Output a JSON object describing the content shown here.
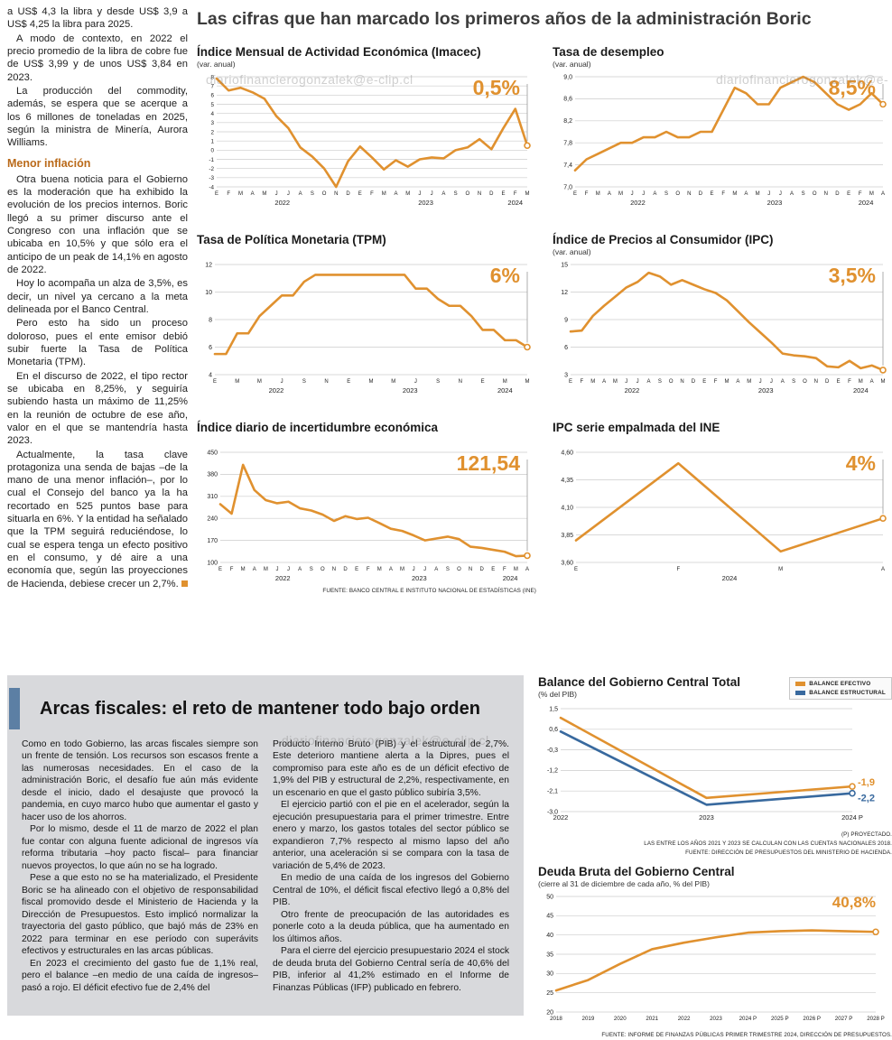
{
  "page": {
    "title": "Las cifras que han marcado los primeros años de la administración Boric",
    "watermark": "diariofinancierogonzalek@e-clip.cl"
  },
  "left_article": {
    "intro_paragraphs": [
      "a US$ 4,3 la libra y desde US$ 3,9 a US$ 4,25 la libra para 2025.",
      "A modo de contexto, en 2022 el precio promedio de la libra de cobre fue de US$ 3,99 y de unos US$ 3,84 en 2023.",
      "La producción del commodity, además, se espera que se acerque a los 6 millones de toneladas en 2025, según la ministra de Minería, Aurora Williams."
    ],
    "heading": "Menor inflación",
    "body_paragraphs": [
      "Otra buena noticia para el Gobierno es la moderación que ha exhibido la evolución de los precios internos. Boric llegó a su primer discurso ante el Congreso con una inflación que se ubicaba en 10,5% y que sólo era el anticipo de un peak de 14,1% en agosto de 2022.",
      "Hoy lo acompaña un alza de 3,5%, es decir, un nivel ya cercano a la meta delineada por el Banco Central.",
      "Pero esto ha sido un proceso doloroso, pues el ente emisor debió subir fuerte la Tasa de Política Monetaria (TPM).",
      "En el discurso de 2022, el tipo rector se ubicaba en 8,25%, y seguiría subiendo hasta un máximo de 11,25% en la reunión de octubre de ese año, valor en el que se mantendría hasta 2023."
    ],
    "last_paragraph": "Actualmente, la tasa clave protagoniza una senda de bajas –de la mano de una menor inflación–, por lo cual el Consejo del banco ya la ha recortado en 525 puntos base para situarla en 6%. Y la entidad ha señalado que la TPM seguirá reduciéndose, lo cual se espera tenga un efecto positivo en el consumo, y dé aire a una economía que, según las proyecciones de Hacienda, debiese crecer un 2,7%."
  },
  "fiscal": {
    "title": "Arcas fiscales: el reto de mantener todo bajo orden",
    "col1_paragraphs": [
      "Como en todo Gobierno, las arcas fiscales siempre son un frente de tensión. Los recursos son escasos frente a las numerosas necesidades. En el caso de la administración Boric, el desafío fue aún más evidente desde el inicio, dado el desajuste que provocó la pandemia, en cuyo marco hubo que aumentar el gasto y hacer uso de los ahorros.",
      "Por lo mismo, desde el 11 de marzo de 2022 el plan fue contar con alguna fuente adicional de ingresos vía reforma tributaria –hoy pacto fiscal– para financiar nuevos proyectos, lo que aún no se ha logrado.",
      "Pese a que esto no se ha materializado, el Presidente Boric se ha alineado con el objetivo de responsabilidad fiscal promovido desde el Ministerio de Hacienda y la Dirección de Presupuestos. Esto implicó normalizar la trayectoria del gasto público, que bajó más de 23% en 2022 para terminar en ese período con superávits efectivos y estructurales en las arcas públicas.",
      "En 2023 el crecimiento del gasto fue de 1,1% real, pero el balance –en medio de una caída de ingresos– pasó a rojo. El déficit efectivo fue de 2,4% del"
    ],
    "col2_paragraphs": [
      "Producto Interno Bruto (PIB) y el estructural de 2,7%. Este deterioro mantiene alerta a la Dipres, pues el compromiso para este año es de un déficit efectivo de 1,9% del PIB y estructural de 2,2%, respectivamente, en un escenario en que el gasto público subiría 3,5%.",
      "El ejercicio partió con el pie en el acelerador, según la ejecución presupuestaria para el primer trimestre. Entre enero y marzo, los gastos totales del sector público se expandieron 7,7% respecto al mismo lapso del año anterior, una aceleración si se compara con la tasa de variación de 5,4% de 2023.",
      "En medio de una caída de los ingresos del Gobierno Central de 10%, el déficit fiscal efectivo llegó a 0,8% del PIB.",
      "Otro frente de preocupación de las autoridades es ponerle coto a la deuda pública, que ha aumentado en los últimos años.",
      "Para el cierre del ejercicio presupuestario 2024 el stock de deuda bruta del Gobierno Central sería de 40,6% del PIB, inferior al 41,2% estimado en el Informe de Finanzas Públicas (IFP) publicado en febrero."
    ]
  },
  "colors": {
    "accent_orange": "#E0912F",
    "accent_blue": "#38699E",
    "panel_gray": "#D8D9DC",
    "accent_bar_blue": "#5C7FA4"
  },
  "chart_data": [
    {
      "id": "imacec",
      "type": "line",
      "title": "Índice Mensual de Actividad Económica (Imacec)",
      "subtitle": "(var. anual)",
      "big_label": "0,5%",
      "ylim": [
        -4,
        8
      ],
      "y_ticks": [
        "8",
        "7",
        "6",
        "5",
        "4",
        "3",
        "2",
        "1",
        "0",
        "-1",
        "-2",
        "-3",
        "-4"
      ],
      "x_labels": [
        "E",
        "F",
        "M",
        "A",
        "M",
        "J",
        "J",
        "A",
        "S",
        "O",
        "N",
        "D",
        "E",
        "F",
        "M",
        "A",
        "M",
        "J",
        "J",
        "A",
        "S",
        "O",
        "N",
        "D",
        "E",
        "F",
        "M"
      ],
      "x_groups": [
        {
          "label": "2022",
          "span": 12
        },
        {
          "label": "2023",
          "span": 12
        },
        {
          "label": "2024",
          "span": 3
        }
      ],
      "series": [
        {
          "name": "Imacec",
          "color": "#E0912F",
          "values": [
            7.8,
            6.5,
            6.8,
            6.3,
            5.6,
            3.7,
            2.4,
            0.3,
            -0.7,
            -2.0,
            -4.0,
            -1.2,
            0.4,
            -0.8,
            -2.1,
            -1.1,
            -1.8,
            -1.0,
            -0.8,
            -0.9,
            0.0,
            0.3,
            1.2,
            0.1,
            2.4,
            4.5,
            0.5
          ]
        }
      ]
    },
    {
      "id": "desempleo",
      "type": "line",
      "title": "Tasa de desempleo",
      "subtitle": "(var. anual)",
      "big_label": "8,5%",
      "ylim": [
        7.0,
        9.0
      ],
      "y_ticks": [
        "9,0",
        "8,6",
        "8,2",
        "7,8",
        "7,4",
        "7,0"
      ],
      "x_labels": [
        "E",
        "F",
        "M",
        "A",
        "M",
        "J",
        "J",
        "A",
        "S",
        "O",
        "N",
        "D",
        "E",
        "F",
        "M",
        "A",
        "M",
        "J",
        "J",
        "A",
        "S",
        "O",
        "N",
        "D",
        "E",
        "F",
        "M",
        "A"
      ],
      "x_groups": [
        {
          "label": "2022",
          "span": 12
        },
        {
          "label": "2023",
          "span": 12
        },
        {
          "label": "2024",
          "span": 4
        }
      ],
      "series": [
        {
          "name": "Tasa de desempleo",
          "color": "#E0912F",
          "values": [
            7.3,
            7.5,
            7.6,
            7.7,
            7.8,
            7.8,
            7.9,
            7.9,
            8.0,
            7.9,
            7.9,
            8.0,
            8.0,
            8.4,
            8.8,
            8.7,
            8.5,
            8.5,
            8.8,
            8.9,
            9.0,
            8.9,
            8.7,
            8.5,
            8.4,
            8.5,
            8.7,
            8.5
          ]
        }
      ]
    },
    {
      "id": "tpm",
      "type": "line",
      "title": "Tasa de Política Monetaria (TPM)",
      "big_label": "6%",
      "ylim": [
        4,
        12
      ],
      "y_ticks": [
        "12",
        "10",
        "8",
        "6",
        "4"
      ],
      "x_labels": [
        "E",
        "",
        "M",
        "",
        "M",
        "",
        "J",
        "",
        "S",
        "",
        "N",
        "",
        "E",
        "",
        "M",
        "",
        "M",
        "",
        "J",
        "",
        "S",
        "",
        "N",
        "",
        "E",
        "",
        "M",
        "",
        "M"
      ],
      "x_groups": [
        {
          "label": "2022",
          "span": 12
        },
        {
          "label": "2023",
          "span": 12
        },
        {
          "label": "2024",
          "span": 5
        }
      ],
      "series": [
        {
          "name": "TPM",
          "color": "#E0912F",
          "values": [
            5.5,
            5.5,
            7.0,
            7.0,
            8.25,
            9.0,
            9.75,
            9.75,
            10.75,
            11.25,
            11.25,
            11.25,
            11.25,
            11.25,
            11.25,
            11.25,
            11.25,
            11.25,
            10.25,
            10.25,
            9.5,
            9.0,
            9.0,
            8.25,
            7.25,
            7.25,
            6.5,
            6.5,
            6.0
          ]
        }
      ]
    },
    {
      "id": "ipc",
      "type": "line",
      "title": "Índice de Precios al Consumidor (IPC)",
      "subtitle": "(var. anual)",
      "big_label": "3,5%",
      "ylim": [
        3,
        15
      ],
      "y_ticks": [
        "15",
        "12",
        "9",
        "6",
        "3"
      ],
      "x_labels": [
        "E",
        "F",
        "M",
        "A",
        "M",
        "J",
        "J",
        "A",
        "S",
        "O",
        "N",
        "D",
        "E",
        "F",
        "M",
        "A",
        "M",
        "J",
        "J",
        "A",
        "S",
        "O",
        "N",
        "D",
        "E",
        "F",
        "M",
        "A",
        "M"
      ],
      "x_groups": [
        {
          "label": "2022",
          "span": 12
        },
        {
          "label": "2023",
          "span": 12
        },
        {
          "label": "2024",
          "span": 5
        }
      ],
      "series": [
        {
          "name": "IPC",
          "color": "#E0912F",
          "values": [
            7.7,
            7.8,
            9.4,
            10.5,
            11.5,
            12.5,
            13.1,
            14.1,
            13.7,
            12.8,
            13.3,
            12.8,
            12.3,
            11.9,
            11.1,
            9.9,
            8.7,
            7.6,
            6.5,
            5.3,
            5.1,
            5.0,
            4.8,
            3.9,
            3.8,
            4.5,
            3.7,
            4.0,
            3.5
          ]
        }
      ]
    },
    {
      "id": "incertidumbre",
      "type": "line",
      "title": "Índice diario de incertidumbre económica",
      "big_label": "121,54",
      "source": "FUENTE: BANCO CENTRAL E INSTITUTO NACIONAL DE ESTADÍSTICAS (INE)",
      "ylim": [
        100,
        450
      ],
      "y_ticks": [
        "450",
        "380",
        "310",
        "240",
        "170",
        "100"
      ],
      "x_labels": [
        "E",
        "F",
        "M",
        "A",
        "M",
        "J",
        "J",
        "A",
        "S",
        "O",
        "N",
        "D",
        "E",
        "F",
        "M",
        "A",
        "M",
        "J",
        "J",
        "A",
        "S",
        "O",
        "N",
        "D",
        "E",
        "F",
        "M",
        "A"
      ],
      "x_groups": [
        {
          "label": "2022",
          "span": 12
        },
        {
          "label": "2023",
          "span": 12
        },
        {
          "label": "2024",
          "span": 4
        }
      ],
      "series": [
        {
          "name": "Incertidumbre económica",
          "color": "#E0912F",
          "values": [
            285,
            255,
            410,
            330,
            298,
            288,
            293,
            272,
            265,
            252,
            232,
            247,
            238,
            242,
            225,
            207,
            200,
            186,
            170,
            176,
            182,
            174,
            150,
            146,
            140,
            134,
            120,
            121.54
          ]
        }
      ]
    },
    {
      "id": "empalmada",
      "type": "line",
      "title": "IPC serie empalmada del INE",
      "big_label": "4%",
      "ylim": [
        3.6,
        4.6
      ],
      "y_ticks": [
        "4,60",
        "4,35",
        "4,10",
        "3,85",
        "3,60"
      ],
      "x_labels": [
        "E",
        "F",
        "M",
        "A"
      ],
      "x_groups": [
        {
          "label": "2024",
          "span": 4
        }
      ],
      "series": [
        {
          "name": "IPC serie empalmada",
          "color": "#E0912F",
          "values": [
            3.8,
            4.5,
            3.7,
            4.0
          ]
        }
      ]
    },
    {
      "id": "balance",
      "type": "line",
      "title": "Balance del Gobierno Central Total",
      "subtitle": "(% del PIB)",
      "ylim": [
        -3.0,
        1.5
      ],
      "y_ticks": [
        "1,5",
        "0,6",
        "-0,3",
        "-1,2",
        "-2,1",
        "-3,0"
      ],
      "x_labels": [
        "2022",
        "2023",
        "2024 P"
      ],
      "series": [
        {
          "name": "BALANCE EFECTIVO",
          "color": "#E0912F",
          "values": [
            1.1,
            -2.4,
            -1.9
          ]
        },
        {
          "name": "BALANCE ESTRUCTURAL",
          "color": "#38699E",
          "values": [
            0.5,
            -2.7,
            -2.2
          ]
        }
      ],
      "end_labels": [
        {
          "text": "-1,9",
          "dy": -1
        },
        {
          "text": "-2,2",
          "dy": 9
        }
      ],
      "notes": [
        "(P) PROYECTADO.",
        "LAS ENTRE LOS AÑOS 2021 Y 2023 SE CALCULAN CON LAS CUENTAS NACIONALES 2018.",
        "FUENTE: DIRECCIÓN DE PRESUPUESTOS DEL MINISTERIO DE HACIENDA."
      ]
    },
    {
      "id": "deuda",
      "type": "line",
      "title": "Deuda Bruta del Gobierno Central",
      "subtitle": "(cierre al 31 de diciembre de cada año, % del PIB)",
      "big_label": "40,8%",
      "source": "FUENTE: INFORME DE FINANZAS PÚBLICAS PRIMER TRIMESTRE 2024, DIRECCIÓN DE PRESUPUESTOS.",
      "ylim": [
        20,
        50
      ],
      "y_ticks": [
        "50",
        "45",
        "40",
        "35",
        "30",
        "25",
        "20"
      ],
      "x_labels": [
        "2018",
        "2019",
        "2020",
        "2021",
        "2022",
        "2023",
        "2024 P",
        "2025 P",
        "2026 P",
        "2027 P",
        "2028 P"
      ],
      "series": [
        {
          "name": "Deuda bruta",
          "color": "#E0912F",
          "values": [
            25.6,
            28.3,
            32.5,
            36.3,
            38.0,
            39.4,
            40.6,
            41.0,
            41.2,
            41.0,
            40.8
          ]
        }
      ]
    }
  ]
}
